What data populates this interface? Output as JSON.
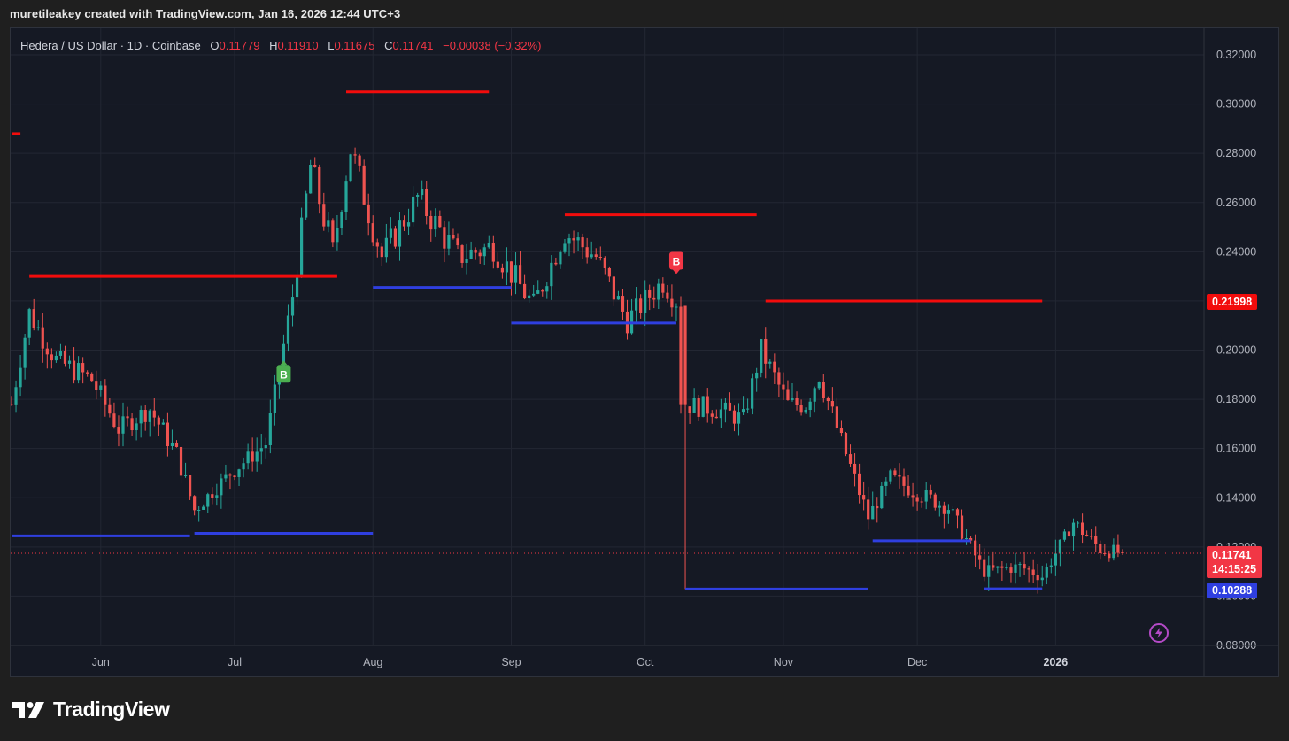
{
  "header": {
    "attribution": "muretileakey created with TradingView.com, Jan 16, 2026 12:44 UTC+3"
  },
  "legend": {
    "symbol": "Hedera / US Dollar · 1D · Coinbase",
    "o_label": "O",
    "o_value": "0.11779",
    "h_label": "H",
    "h_value": "0.11910",
    "l_label": "L",
    "l_value": "0.11675",
    "c_label": "C",
    "c_value": "0.11741",
    "change": "−0.00038 (−0.32%)"
  },
  "price_axis": {
    "ticks": [
      "0.32000",
      "0.30000",
      "0.28000",
      "0.26000",
      "0.24000",
      "0.22000",
      "0.20000",
      "0.18000",
      "0.16000",
      "0.14000",
      "0.12000",
      "0.10000",
      "0.08000"
    ]
  },
  "time_axis": {
    "labels": [
      "Jun",
      "Jul",
      "Aug",
      "Sep",
      "Oct",
      "Nov",
      "Dec",
      "2026"
    ]
  },
  "price_tags": {
    "resistance_tag": "0.21998",
    "last_price_tag": "0.11741",
    "countdown": "14:15:25",
    "support_tag": "0.10288"
  },
  "signals": {
    "buy_label": "B",
    "sell_label": "B"
  },
  "footer": {
    "wordmark": "TradingView"
  },
  "colors": {
    "background": "#151924",
    "up": "#26a69a",
    "down": "#ef5350",
    "resistance": "#f20c0c",
    "support": "#2f3fe0",
    "buy_badge": "#4caf50",
    "sell_badge": "#f23645"
  },
  "chart_data": {
    "type": "candlestick",
    "symbol": "Hedera / US Dollar",
    "interval": "1D",
    "exchange": "Coinbase",
    "ylim": [
      0.08,
      0.32
    ],
    "x_labels": [
      "Jun",
      "Jul",
      "Aug",
      "Sep",
      "Oct",
      "Nov",
      "Dec",
      "2026"
    ],
    "last_close": 0.11741,
    "waypoints": [
      {
        "date": "2025-05-12",
        "close": 0.178
      },
      {
        "date": "2025-05-16",
        "close": 0.215
      },
      {
        "date": "2025-05-22",
        "close": 0.196
      },
      {
        "date": "2025-05-30",
        "close": 0.188
      },
      {
        "date": "2025-06-05",
        "close": 0.168
      },
      {
        "date": "2025-06-12",
        "close": 0.176
      },
      {
        "date": "2025-06-18",
        "close": 0.158
      },
      {
        "date": "2025-06-22",
        "close": 0.135
      },
      {
        "date": "2025-06-30",
        "close": 0.15
      },
      {
        "date": "2025-07-08",
        "close": 0.162
      },
      {
        "date": "2025-07-14",
        "close": 0.222
      },
      {
        "date": "2025-07-18",
        "close": 0.275
      },
      {
        "date": "2025-07-23",
        "close": 0.24
      },
      {
        "date": "2025-07-27",
        "close": 0.282
      },
      {
        "date": "2025-08-03",
        "close": 0.238
      },
      {
        "date": "2025-08-11",
        "close": 0.262
      },
      {
        "date": "2025-08-20",
        "close": 0.238
      },
      {
        "date": "2025-08-28",
        "close": 0.242
      },
      {
        "date": "2025-09-06",
        "close": 0.218
      },
      {
        "date": "2025-09-13",
        "close": 0.248
      },
      {
        "date": "2025-09-20",
        "close": 0.238
      },
      {
        "date": "2025-09-27",
        "close": 0.212
      },
      {
        "date": "2025-10-05",
        "close": 0.228
      },
      {
        "date": "2025-10-09",
        "close": 0.218
      },
      {
        "date": "2025-10-10",
        "close": 0.178
      },
      {
        "date": "2025-10-17",
        "close": 0.176
      },
      {
        "date": "2025-10-23",
        "close": 0.172
      },
      {
        "date": "2025-10-27",
        "close": 0.2
      },
      {
        "date": "2025-11-02",
        "close": 0.178
      },
      {
        "date": "2025-11-06",
        "close": 0.178
      },
      {
        "date": "2025-11-09",
        "close": 0.19
      },
      {
        "date": "2025-11-14",
        "close": 0.163
      },
      {
        "date": "2025-11-20",
        "close": 0.132
      },
      {
        "date": "2025-11-25",
        "close": 0.148
      },
      {
        "date": "2025-12-01",
        "close": 0.142
      },
      {
        "date": "2025-12-08",
        "close": 0.136
      },
      {
        "date": "2025-12-16",
        "close": 0.11
      },
      {
        "date": "2025-12-24",
        "close": 0.112
      },
      {
        "date": "2025-12-29",
        "close": 0.108
      },
      {
        "date": "2026-01-05",
        "close": 0.13
      },
      {
        "date": "2026-01-11",
        "close": 0.119
      },
      {
        "date": "2026-01-16",
        "close": 0.11741
      }
    ],
    "resistance_lines": [
      {
        "from": "2025-05-12",
        "to": "2025-05-14",
        "price": 0.288
      },
      {
        "from": "2025-05-16",
        "to": "2025-07-24",
        "price": 0.23
      },
      {
        "from": "2025-07-26",
        "to": "2025-08-27",
        "price": 0.305
      },
      {
        "from": "2025-09-13",
        "to": "2025-10-26",
        "price": 0.255
      },
      {
        "from": "2025-10-28",
        "to": "2025-12-29",
        "price": 0.21998
      }
    ],
    "support_lines": [
      {
        "from": "2025-05-12",
        "to": "2025-06-21",
        "price": 0.1245
      },
      {
        "from": "2025-06-22",
        "to": "2025-08-01",
        "price": 0.1255
      },
      {
        "from": "2025-08-01",
        "to": "2025-09-01",
        "price": 0.2255
      },
      {
        "from": "2025-09-01",
        "to": "2025-10-08",
        "price": 0.211
      },
      {
        "from": "2025-10-10",
        "to": "2025-11-20",
        "price": 0.10288
      },
      {
        "from": "2025-11-21",
        "to": "2025-12-13",
        "price": 0.1225
      },
      {
        "from": "2025-12-16",
        "to": "2025-12-29",
        "price": 0.103
      }
    ],
    "signals": [
      {
        "date": "2025-07-12",
        "type": "buy",
        "label": "B",
        "price": 0.19
      },
      {
        "date": "2025-10-08",
        "type": "sell",
        "label": "B",
        "price": 0.236
      }
    ]
  }
}
